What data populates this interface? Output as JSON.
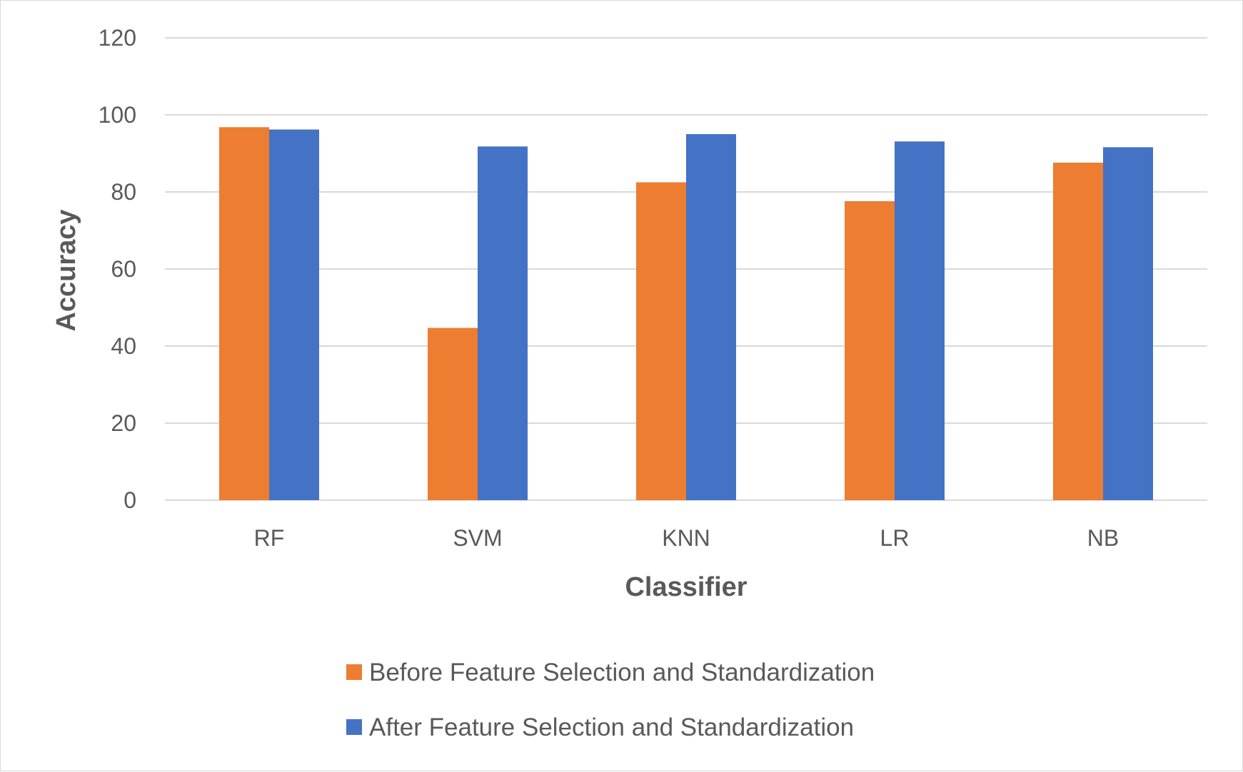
{
  "chart_data": {
    "type": "bar",
    "categories": [
      "RF",
      "SVM",
      "KNN",
      "LR",
      "NB"
    ],
    "series": [
      {
        "name": "Before Feature Selection and Standardization",
        "color": "#ED7D31",
        "values": [
          96.8,
          44.7,
          82.5,
          77.6,
          87.6
        ]
      },
      {
        "name": "After Feature Selection and Standardization",
        "color": "#4472C4",
        "values": [
          96.2,
          91.8,
          95.0,
          93.1,
          91.6
        ]
      }
    ],
    "xlabel": "Classifier",
    "ylabel": "Accuracy",
    "ylim": [
      0,
      120
    ],
    "yticks": [
      "0",
      "20",
      "40",
      "60",
      "80",
      "100",
      "120"
    ],
    "grid": true,
    "legend_position": "bottom"
  }
}
